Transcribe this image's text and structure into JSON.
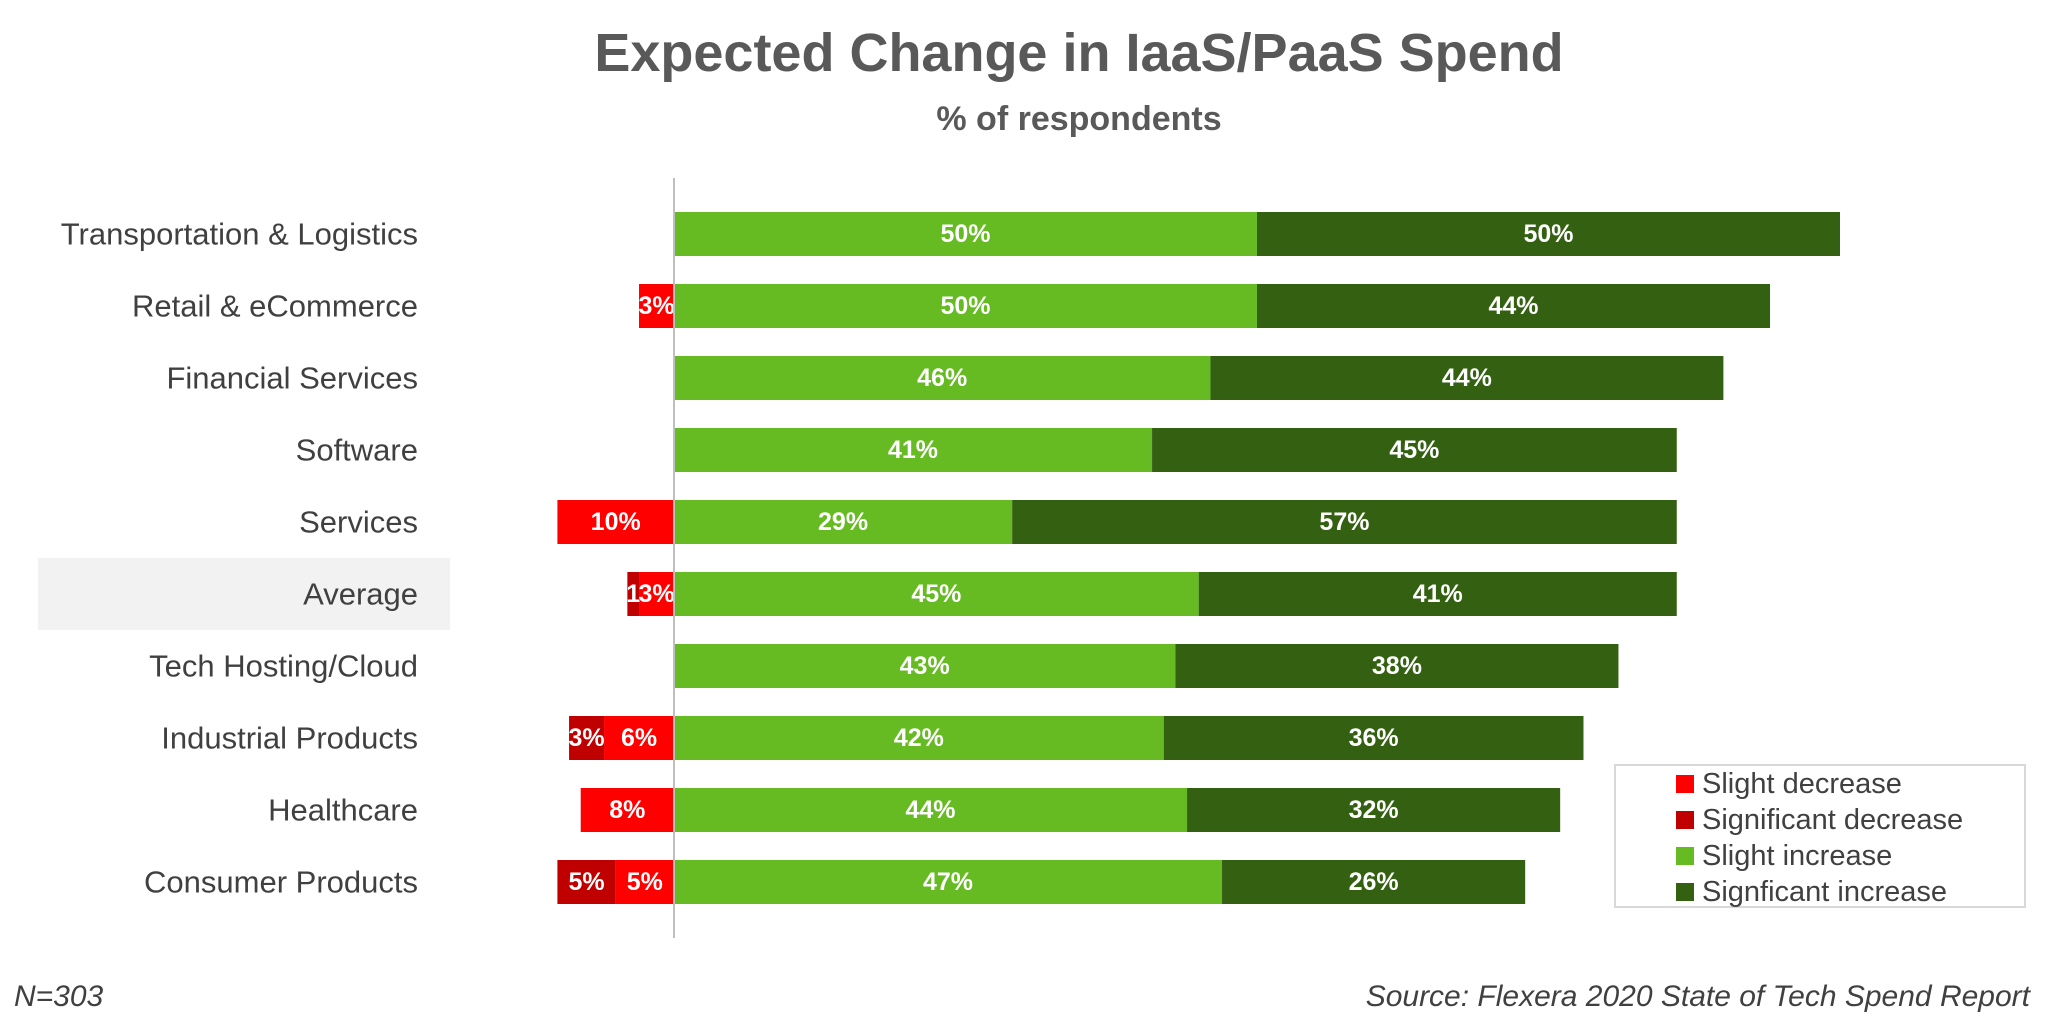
{
  "chart_data": {
    "type": "bar",
    "orientation": "horizontal",
    "stacked": true,
    "diverging": true,
    "title": "Expected Change in IaaS/PaaS Spend",
    "subtitle": "% of respondents",
    "categories": [
      "Transportation & Logistics",
      "Retail & eCommerce",
      "Financial Services",
      "Software",
      "Services",
      "Average",
      "Tech Hosting/Cloud",
      "Industrial Products",
      "Healthcare",
      "Consumer Products"
    ],
    "highlight_category": "Average",
    "series": [
      {
        "name": "Slight decrease",
        "color": "#ff0000",
        "side": "negative",
        "values": [
          0,
          3,
          0,
          0,
          10,
          3,
          0,
          6,
          8,
          5
        ],
        "labels": [
          "",
          "3%",
          "",
          "",
          "10%",
          "3%",
          "",
          "6%",
          "8%",
          "5%"
        ]
      },
      {
        "name": "Significant decrease",
        "color": "#c00000",
        "side": "negative",
        "values": [
          0,
          0,
          0,
          0,
          0,
          1,
          0,
          3,
          0,
          5
        ],
        "labels": [
          "",
          "",
          "",
          "",
          "",
          "1",
          "",
          "3%",
          "",
          "5%"
        ]
      },
      {
        "name": "Slight increase",
        "color": "#66bb22",
        "side": "positive",
        "values": [
          50,
          50,
          46,
          41,
          29,
          45,
          43,
          42,
          44,
          47
        ],
        "labels": [
          "50%",
          "50%",
          "46%",
          "41%",
          "29%",
          "45%",
          "43%",
          "42%",
          "44%",
          "47%"
        ]
      },
      {
        "name": "Signficant increase",
        "color": "#336011",
        "side": "positive",
        "values": [
          50,
          44,
          44,
          45,
          57,
          41,
          38,
          36,
          32,
          26
        ],
        "labels": [
          "50%",
          "44%",
          "44%",
          "45%",
          "57%",
          "41%",
          "38%",
          "36%",
          "32%",
          "26%"
        ]
      }
    ],
    "xlim": [
      -10,
      100
    ],
    "grid": false,
    "legend_position": "bottom-right"
  },
  "footnote_n": "N=303",
  "footnote_source": "Source: Flexera 2020 State of Tech Spend Report"
}
